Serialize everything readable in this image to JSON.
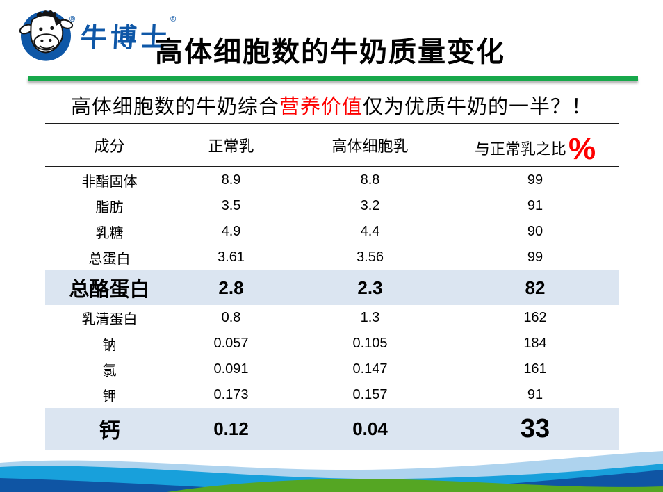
{
  "slide": {
    "logo": {
      "brand": "牛博士",
      "registered_mark": "®"
    },
    "title": "高体细胞数的牛奶质量变化",
    "subtitle": {
      "prefix": "高体细胞数的牛奶综合",
      "highlight": "营养价值",
      "suffix": "仅为优质牛奶的一半？！"
    },
    "colors": {
      "brand_blue": "#0e57a7",
      "accent_red": "#fe0000",
      "green_rule": "#17a84b",
      "highlight_row_bg": "#dbe5f1",
      "wave_light_blue": "#aed3ee",
      "wave_cyan": "#18a0db",
      "wave_dark_blue": "#0f55a4",
      "wave_green": "#55a623"
    }
  },
  "table": {
    "columns": [
      "成分",
      "正常乳",
      "高体细胞乳",
      "与正常乳之比"
    ],
    "percent_symbol": "%",
    "rows": [
      {
        "component": "非酯固体",
        "normal": "8.9",
        "high": "8.8",
        "ratio": "99",
        "ratio_red": false,
        "highlight": false,
        "big": false
      },
      {
        "component": "脂肪",
        "normal": "3.5",
        "high": "3.2",
        "ratio": "91",
        "ratio_red": false,
        "highlight": false,
        "big": false
      },
      {
        "component": "乳糖",
        "normal": "4.9",
        "high": "4.4",
        "ratio": "90",
        "ratio_red": true,
        "highlight": false,
        "big": false
      },
      {
        "component": "总蛋白",
        "normal": "3.61",
        "high": "3.56",
        "ratio": "99",
        "ratio_red": false,
        "highlight": false,
        "big": false
      },
      {
        "component": "总酪蛋白",
        "normal": "2.8",
        "high": "2.3",
        "ratio": "82",
        "ratio_red": true,
        "highlight": true,
        "big": false
      },
      {
        "component": "乳清蛋白",
        "normal": "0.8",
        "high": "1.3",
        "ratio": "162",
        "ratio_red": true,
        "highlight": false,
        "big": false
      },
      {
        "component": "钠",
        "normal": "0.057",
        "high": "0.105",
        "ratio": "184",
        "ratio_red": true,
        "highlight": false,
        "big": false
      },
      {
        "component": "氯",
        "normal": "0.091",
        "high": "0.147",
        "ratio": "161",
        "ratio_red": true,
        "highlight": false,
        "big": false
      },
      {
        "component": "钾",
        "normal": "0.173",
        "high": "0.157",
        "ratio": "91",
        "ratio_red": true,
        "highlight": false,
        "big": false
      },
      {
        "component": "钙",
        "normal": "0.12",
        "high": "0.04",
        "ratio": "33",
        "ratio_red": true,
        "highlight": true,
        "big": true
      }
    ]
  }
}
